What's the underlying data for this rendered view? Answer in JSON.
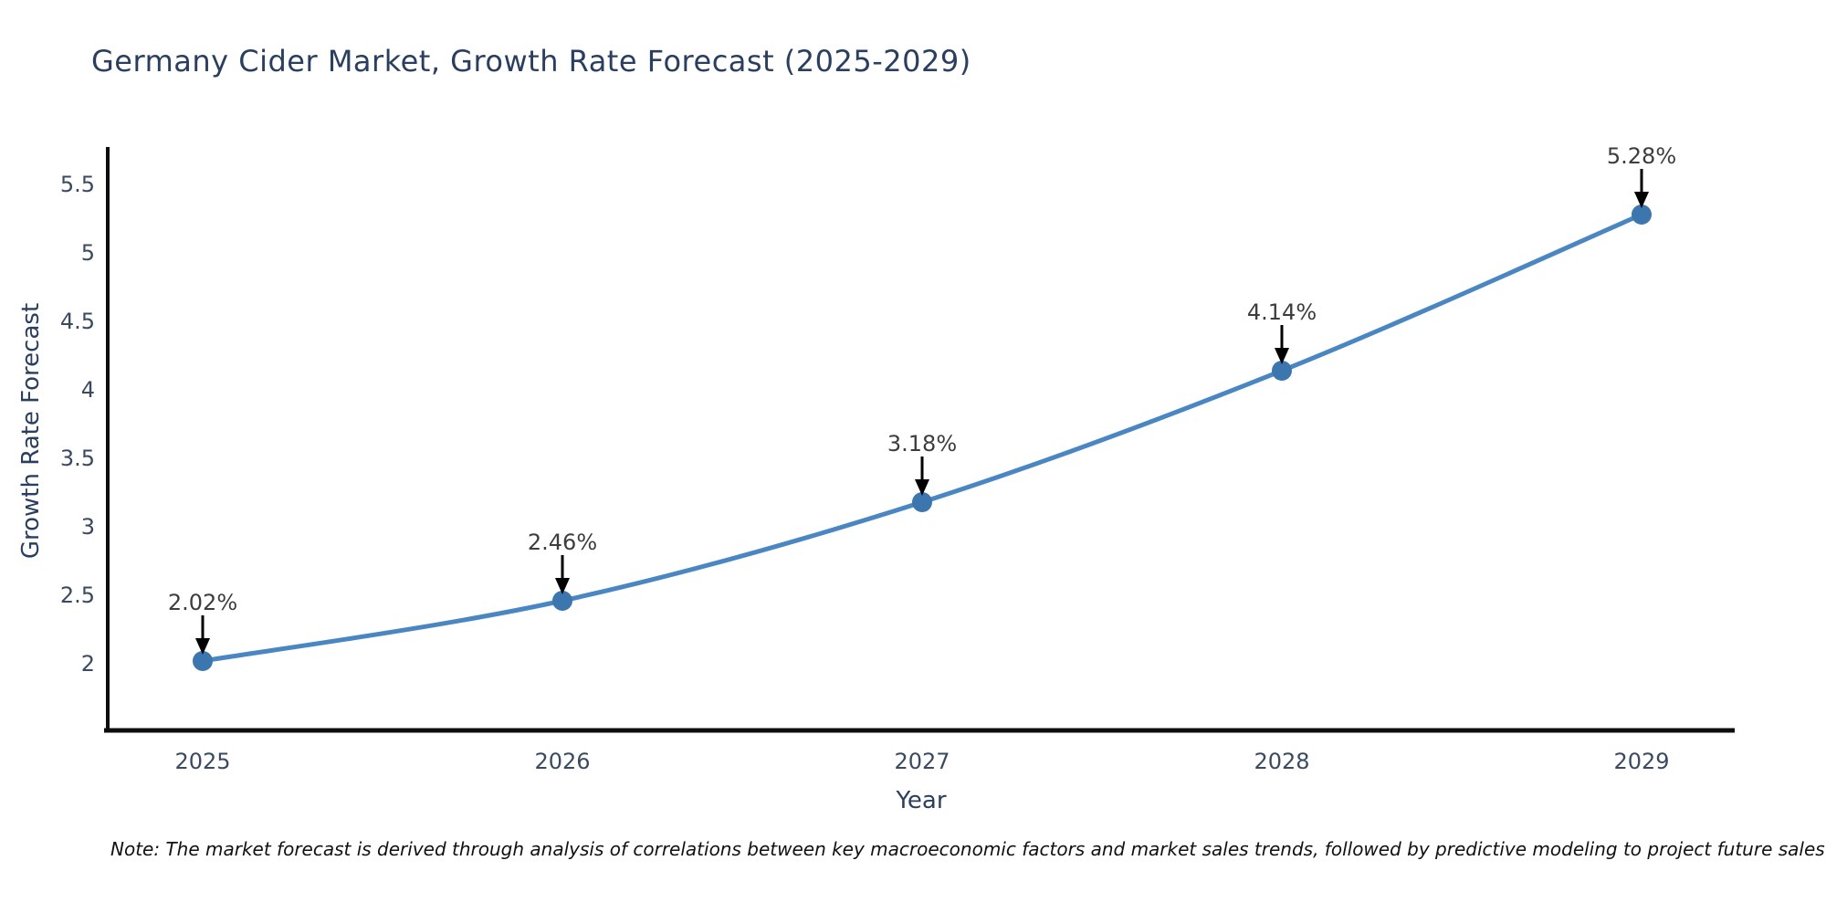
{
  "title": "Germany Cider Market, Growth Rate Forecast (2025-2029)",
  "note": "Note: The market forecast is derived through analysis of correlations between key macroeconomic factors and market sales trends, followed by predictive modeling to project future sales",
  "chart_data": {
    "type": "line",
    "title": "Germany Cider Market, Growth Rate Forecast (2025-2029)",
    "xlabel": "Year",
    "ylabel": "Growth Rate Forecast",
    "categories": [
      "2025",
      "2026",
      "2027",
      "2028",
      "2029"
    ],
    "series": [
      {
        "name": "Growth Rate Forecast",
        "values": [
          2.02,
          2.46,
          3.18,
          4.14,
          5.28
        ],
        "point_labels": [
          "2.02%",
          "2.46%",
          "3.18%",
          "4.14%",
          "5.28%"
        ]
      }
    ],
    "y_ticks": [
      {
        "value": 2,
        "label": "2"
      },
      {
        "value": 2.5,
        "label": "2.5"
      },
      {
        "value": 3,
        "label": "3"
      },
      {
        "value": 3.5,
        "label": "3.5"
      },
      {
        "value": 4,
        "label": "4"
      },
      {
        "value": 4.5,
        "label": "4.5"
      },
      {
        "value": 5,
        "label": "5"
      },
      {
        "value": 5.5,
        "label": "5.5"
      }
    ],
    "ylim": [
      1.51,
      5.77
    ],
    "grid": false,
    "legend_position": "none",
    "annotations_have_arrows": true
  },
  "colors": {
    "line": "#4a87c2",
    "marker": "#3c76af",
    "axis_spine": "#0d0d0d",
    "tick_label": "#3b4a63",
    "axis_title": "#2a3f5f",
    "chart_title": "#2a3f5f",
    "annotation_text": "#3d3d3d",
    "annotation_arrow": "#000000",
    "note_text": "#111111",
    "background": "#ffffff"
  }
}
